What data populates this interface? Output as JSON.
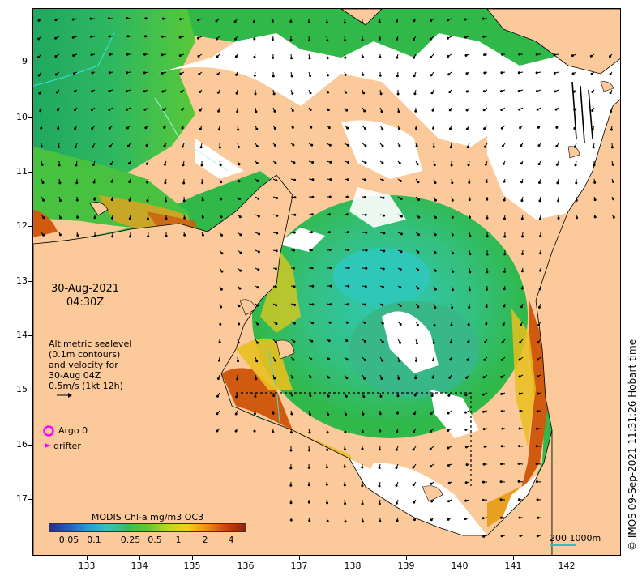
{
  "map": {
    "y_ticks": [
      "9",
      "10",
      "11",
      "12",
      "13",
      "14",
      "15",
      "16",
      "17"
    ],
    "x_ticks": [
      "133",
      "134",
      "135",
      "136",
      "137",
      "138",
      "139",
      "140",
      "141",
      "142"
    ],
    "lat_range_deg_south": [
      8.0,
      17.9
    ],
    "lon_range_deg_east": [
      132.0,
      143.0
    ]
  },
  "date_line1": "30-Aug-2021",
  "date_line2": "04:30Z",
  "altimetry": {
    "line1": "Altimetric sealevel",
    "line2": "(0.1m contours)",
    "line3": "and velocity for",
    "line4": "30-Aug 04Z",
    "line5": "0.5m/s (1kt 12h)"
  },
  "legend": {
    "argo_label": "Argo 0",
    "drifter_label": "drifter",
    "argo_color": "#ff00ff",
    "drifter_color": "#ff00ff"
  },
  "colorbar": {
    "title": "MODIS Chl-a mg/m3 OC3",
    "labels": [
      "0.05",
      "0.1",
      "0.25",
      "0.5",
      "1",
      "2",
      "4"
    ],
    "colors": [
      "#2a2a90",
      "#1f5fc8",
      "#1fa0d8",
      "#2fc8b8",
      "#30c060",
      "#60c830",
      "#b8d820",
      "#f0d020",
      "#f09010",
      "#d04010",
      "#902010"
    ]
  },
  "scale_bar": "200  1000m",
  "credit": "© IMOS 09-Sep-2021 11:31:26 Hobart time",
  "colors": {
    "land": "#fbc99a",
    "cloud": "#ffffff",
    "chl_low": "#2fc8b8",
    "chl_mid": "#30b848",
    "chl_high": "#d05a10",
    "current_arrow": "#000000"
  }
}
